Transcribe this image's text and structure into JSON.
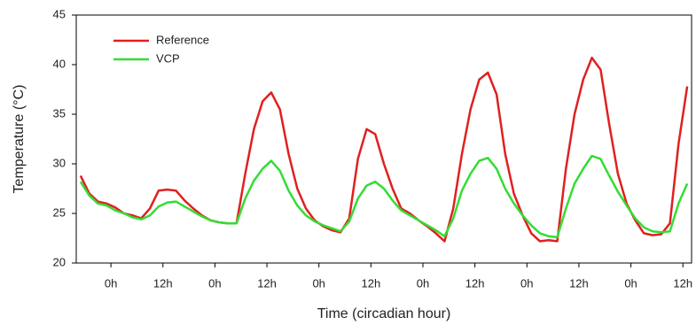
{
  "chart_data": {
    "type": "line",
    "xlabel": "Time (circadian hour)",
    "ylabel": "Temperature (°C)",
    "x": [
      -7,
      -5,
      -3,
      -1,
      1,
      3,
      5,
      7,
      9,
      11,
      13,
      15,
      17,
      19,
      21,
      23,
      25,
      27,
      29,
      31,
      33,
      35,
      37,
      39,
      41,
      43,
      45,
      47,
      49,
      51,
      53,
      55,
      57,
      59,
      61,
      63,
      65,
      67,
      69,
      71,
      73,
      75,
      77,
      79,
      81,
      83,
      85,
      87,
      89,
      91,
      93,
      95,
      97,
      99,
      101,
      103,
      105,
      107,
      109,
      111,
      113,
      115,
      117,
      119,
      121,
      123,
      125,
      127,
      129,
      131,
      133
    ],
    "series": [
      {
        "name": "Reference",
        "color": "#e02020",
        "values": [
          28.8,
          27,
          26.2,
          26,
          25.6,
          25,
          24.8,
          24.5,
          25.5,
          27.3,
          27.4,
          27.3,
          26.3,
          25.5,
          24.8,
          24.3,
          24.1,
          24,
          24,
          29,
          33.5,
          36.3,
          37.2,
          35.5,
          31,
          27.5,
          25.5,
          24.3,
          23.7,
          23.3,
          23.1,
          24.5,
          30.5,
          33.5,
          33,
          30,
          27.5,
          25.5,
          25,
          24.3,
          23.7,
          23,
          22.2,
          25.5,
          31,
          35.5,
          38.5,
          39.2,
          37,
          31,
          27,
          24.8,
          23,
          22.2,
          22.3,
          22.2,
          29.5,
          35,
          38.5,
          40.7,
          39.5,
          34,
          29,
          26,
          24.3,
          23,
          22.8,
          22.9,
          24,
          32,
          37.8
        ]
      },
      {
        "name": "VCP",
        "color": "#33dd33",
        "values": [
          28.2,
          26.8,
          26,
          25.8,
          25.3,
          25,
          24.6,
          24.4,
          24.8,
          25.7,
          26.1,
          26.2,
          25.7,
          25.2,
          24.7,
          24.3,
          24.1,
          24,
          24,
          26.5,
          28.3,
          29.5,
          30.3,
          29.3,
          27.3,
          25.8,
          24.8,
          24.2,
          23.8,
          23.5,
          23.2,
          24.2,
          26.5,
          27.8,
          28.2,
          27.5,
          26.3,
          25.3,
          24.8,
          24.3,
          23.8,
          23.3,
          22.7,
          24.5,
          27.3,
          29,
          30.3,
          30.6,
          29.5,
          27.5,
          26,
          24.8,
          23.8,
          23,
          22.7,
          22.6,
          25.5,
          28,
          29.5,
          30.8,
          30.5,
          28.8,
          27.2,
          25.8,
          24.5,
          23.6,
          23.2,
          23.1,
          23.2,
          26,
          28
        ]
      }
    ],
    "xlim": [
      -8,
      134
    ],
    "ylim": [
      20,
      45
    ],
    "yticks": [
      20,
      25,
      30,
      35,
      40,
      45
    ],
    "xticks": [
      {
        "value": 0,
        "label": "0h"
      },
      {
        "value": 12,
        "label": "12h"
      },
      {
        "value": 24,
        "label": "0h"
      },
      {
        "value": 36,
        "label": "12h"
      },
      {
        "value": 48,
        "label": "0h"
      },
      {
        "value": 60,
        "label": "12h"
      },
      {
        "value": 72,
        "label": "0h"
      },
      {
        "value": 84,
        "label": "12h"
      },
      {
        "value": 96,
        "label": "0h"
      },
      {
        "value": 108,
        "label": "12h"
      },
      {
        "value": 120,
        "label": "0h"
      },
      {
        "value": 132,
        "label": "12h"
      }
    ],
    "legend": "upper left"
  }
}
